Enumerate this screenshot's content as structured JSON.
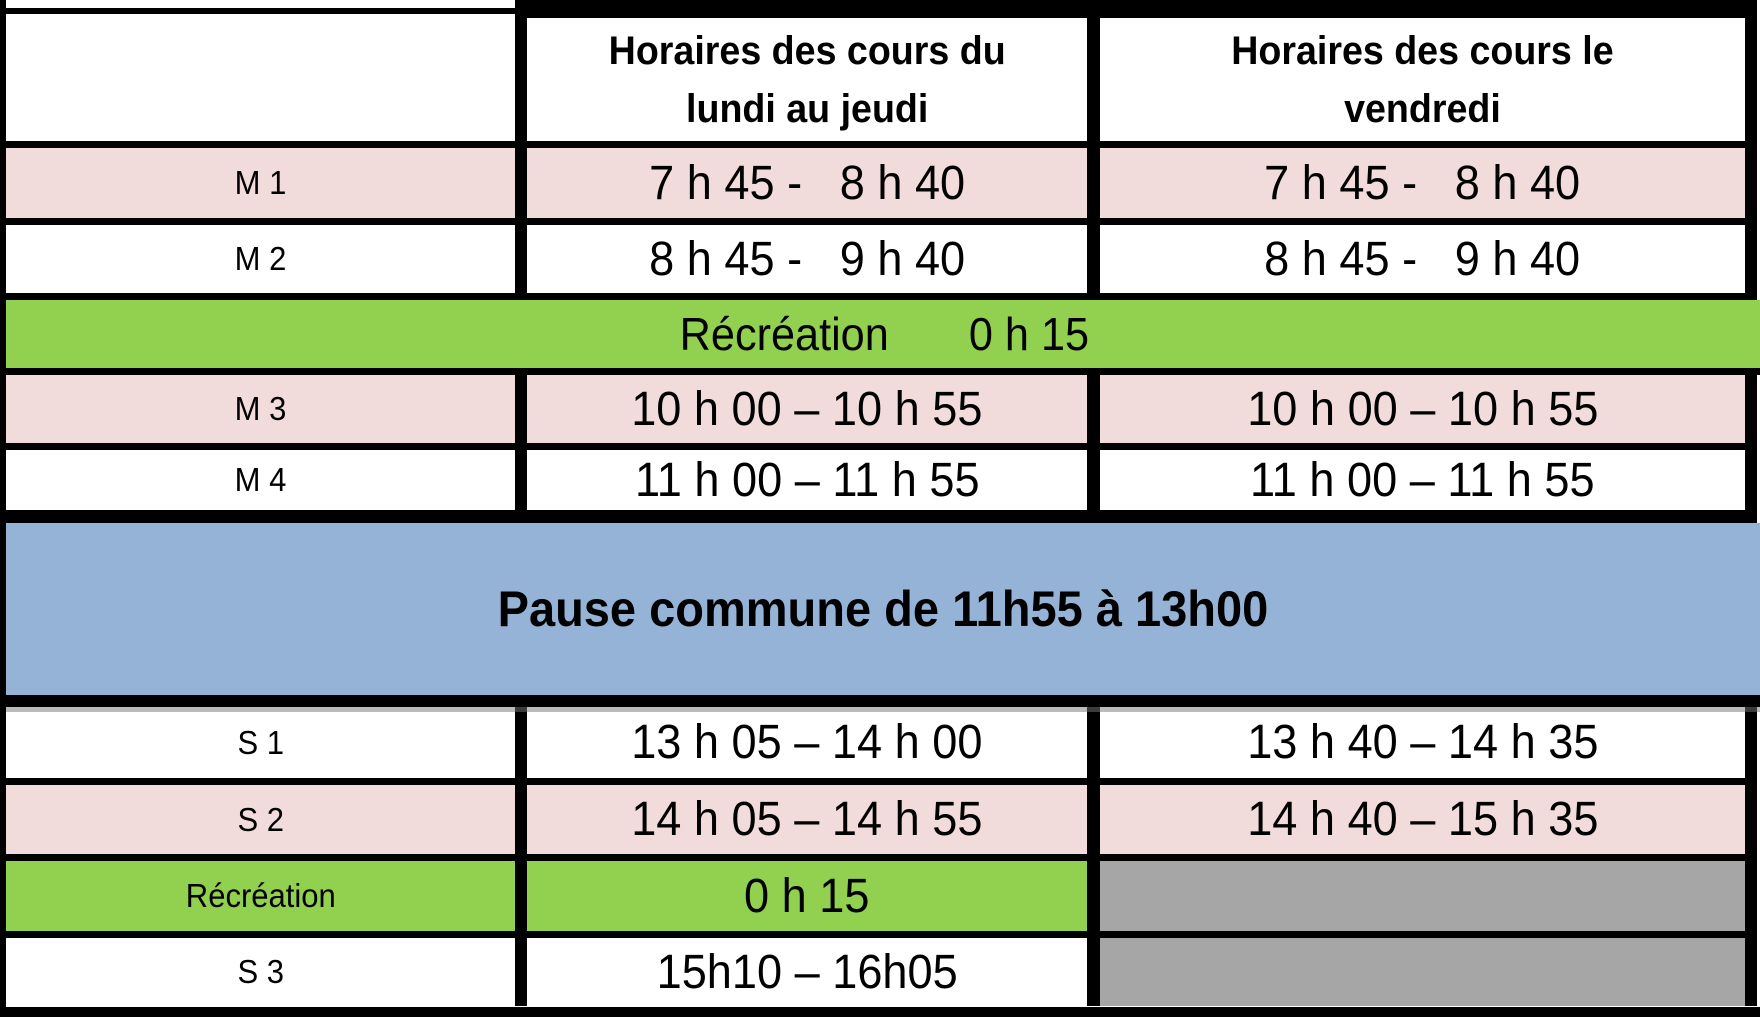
{
  "colors": {
    "pink": "#f2dcdb",
    "green": "#92d050",
    "blue": "#95b3d7",
    "gray": "#a6a6a6",
    "border": "#000000",
    "background": "#ffffff"
  },
  "header": {
    "lundi_jeudi": "Horaires des cours du\nlundi au jeudi",
    "vendredi": "Horaires des cours le\nvendredi"
  },
  "rows": {
    "m1": {
      "label": "M 1",
      "lundi_jeudi": "7 h 45 -   8 h 40",
      "vendredi": "7 h 45 -   8 h 40"
    },
    "m2": {
      "label": "M 2",
      "lundi_jeudi": "8 h 45 -   9 h 40",
      "vendredi": "8 h 45 -   9 h 40"
    },
    "m3": {
      "label": "M 3",
      "lundi_jeudi": "10 h 00 – 10 h 55",
      "vendredi": "10 h 00 – 10 h 55"
    },
    "m4": {
      "label": "M 4",
      "lundi_jeudi": "11 h 00 – 11 h 55",
      "vendredi": "11 h 00 – 11 h 55"
    },
    "s1": {
      "label": "S 1",
      "lundi_jeudi": "13 h 05 – 14 h 00",
      "vendredi": "13 h 40 – 14 h 35"
    },
    "s2": {
      "label": "S 2",
      "lundi_jeudi": "14 h 05 – 14 h 55",
      "vendredi": "14 h 40 – 15 h 35"
    },
    "s3": {
      "label": "S 3",
      "lundi_jeudi": "15h10 – 16h05"
    }
  },
  "recreation_morning": {
    "label": "Récréation",
    "duration": "0 h 15"
  },
  "pause": {
    "text": "Pause commune de 11h55 à 13h00"
  },
  "recreation_afternoon": {
    "label": "Récréation",
    "duration": "0 h 15"
  }
}
